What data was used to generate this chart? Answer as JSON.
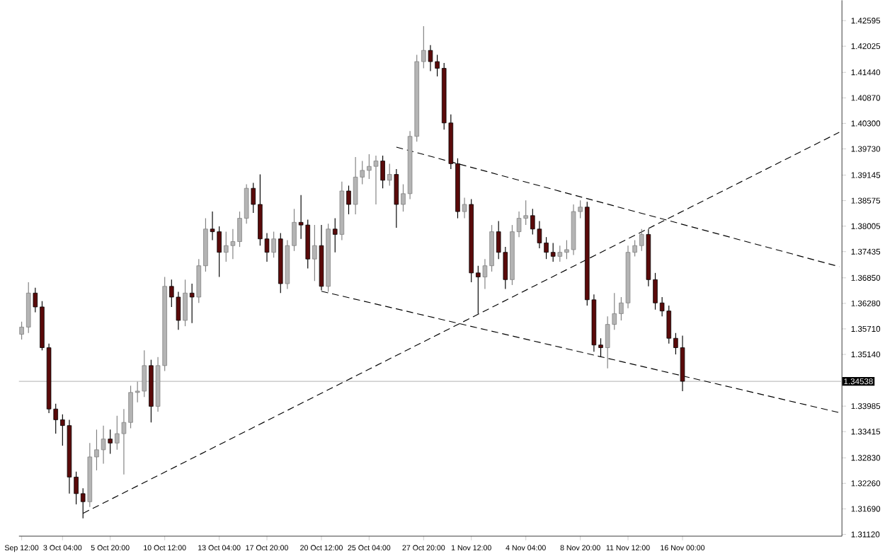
{
  "chart_data": {
    "type": "candlestick",
    "categories": [
      "Sep 12:00",
      null,
      null,
      null,
      null,
      null,
      "3 Oct 04:00",
      null,
      null,
      null,
      null,
      null,
      null,
      "5 Oct 20:00",
      null,
      null,
      null,
      null,
      null,
      null,
      null,
      "10 Oct 12:00",
      null,
      null,
      null,
      null,
      null,
      null,
      null,
      "13 Oct 04:00",
      null,
      null,
      null,
      null,
      null,
      null,
      "17 Oct 20:00",
      null,
      null,
      null,
      null,
      null,
      null,
      null,
      "20 Oct 12:00",
      null,
      null,
      null,
      null,
      null,
      null,
      "25 Oct 04:00",
      null,
      null,
      null,
      null,
      null,
      null,
      null,
      "27 Oct 20:00",
      null,
      null,
      null,
      null,
      null,
      null,
      "1 Nov 12:00",
      null,
      null,
      null,
      null,
      null,
      null,
      null,
      "4 Nov 04:00",
      null,
      null,
      null,
      null,
      null,
      null,
      null,
      "8 Nov 20:00",
      null,
      null,
      null,
      null,
      null,
      null,
      "11 Nov 12:00",
      null,
      null,
      null,
      null,
      null,
      null,
      null,
      "16 Nov 00:00",
      null,
      null,
      null,
      null,
      null,
      null,
      null,
      null,
      null,
      null,
      null,
      null,
      null,
      null,
      null,
      null,
      null,
      null,
      null,
      null,
      null,
      null,
      null
    ],
    "ohlc": [
      [
        1.3559,
        1.3587,
        1.3547,
        1.3575
      ],
      [
        1.3575,
        1.3675,
        1.3562,
        1.3651
      ],
      [
        1.3651,
        1.3663,
        1.3608,
        1.362
      ],
      [
        1.362,
        1.3633,
        1.3523,
        1.3529
      ],
      [
        1.3529,
        1.3538,
        1.3383,
        1.3392
      ],
      [
        1.3392,
        1.3404,
        1.3337,
        1.3368
      ],
      [
        1.3368,
        1.338,
        1.331,
        1.3355
      ],
      [
        1.3355,
        1.3368,
        1.3203,
        1.324
      ],
      [
        1.324,
        1.3252,
        1.3179,
        1.3203
      ],
      [
        1.3203,
        1.3215,
        1.3148,
        1.3185
      ],
      [
        1.3185,
        1.3316,
        1.3173,
        1.3285
      ],
      [
        1.3285,
        1.3346,
        1.3255,
        1.3301
      ],
      [
        1.3301,
        1.3355,
        1.327,
        1.3325
      ],
      [
        1.3325,
        1.3346,
        1.3292,
        1.3316
      ],
      [
        1.3316,
        1.3377,
        1.3301,
        1.3337
      ],
      [
        1.3337,
        1.3392,
        1.3246,
        1.3362
      ],
      [
        1.3362,
        1.3444,
        1.3349,
        1.3429
      ],
      [
        1.3429,
        1.3453,
        1.3407,
        1.3432
      ],
      [
        1.3432,
        1.3523,
        1.3419,
        1.3489
      ],
      [
        1.3489,
        1.3502,
        1.3362,
        1.3398
      ],
      [
        1.3398,
        1.3508,
        1.3386,
        1.3489
      ],
      [
        1.3489,
        1.3687,
        1.3477,
        1.3666
      ],
      [
        1.3666,
        1.3681,
        1.362,
        1.3642
      ],
      [
        1.3642,
        1.3654,
        1.3569,
        1.359
      ],
      [
        1.359,
        1.3681,
        1.3577,
        1.3651
      ],
      [
        1.3651,
        1.3672,
        1.3584,
        1.3642
      ],
      [
        1.3642,
        1.3727,
        1.3629,
        1.3712
      ],
      [
        1.3712,
        1.3818,
        1.3699,
        1.3794
      ],
      [
        1.3794,
        1.3833,
        1.3769,
        1.3788
      ],
      [
        1.3788,
        1.38,
        1.3687,
        1.3742
      ],
      [
        1.3742,
        1.3788,
        1.3721,
        1.3757
      ],
      [
        1.3757,
        1.3794,
        1.3727,
        1.3766
      ],
      [
        1.3766,
        1.3833,
        1.3754,
        1.3818
      ],
      [
        1.3818,
        1.3894,
        1.3806,
        1.3885
      ],
      [
        1.3885,
        1.3897,
        1.383,
        1.3849
      ],
      [
        1.3849,
        1.3916,
        1.3757,
        1.3772
      ],
      [
        1.3772,
        1.3785,
        1.3721,
        1.3742
      ],
      [
        1.3742,
        1.3788,
        1.373,
        1.3772
      ],
      [
        1.3772,
        1.3785,
        1.3651,
        1.3672
      ],
      [
        1.3672,
        1.3769,
        1.366,
        1.3757
      ],
      [
        1.3757,
        1.3839,
        1.3745,
        1.3809
      ],
      [
        1.3809,
        1.387,
        1.3772,
        1.3803
      ],
      [
        1.3803,
        1.3815,
        1.3706,
        1.3727
      ],
      [
        1.3727,
        1.3803,
        1.3678,
        1.3757
      ],
      [
        1.3757,
        1.3803,
        1.3657,
        1.3666
      ],
      [
        1.3666,
        1.3806,
        1.3654,
        1.3794
      ],
      [
        1.3794,
        1.3818,
        1.3742,
        1.3782
      ],
      [
        1.3782,
        1.39,
        1.3769,
        1.3879
      ],
      [
        1.3879,
        1.3891,
        1.3827,
        1.3849
      ],
      [
        1.3849,
        1.3955,
        1.3827,
        1.391
      ],
      [
        1.391,
        1.3946,
        1.3894,
        1.3925
      ],
      [
        1.3925,
        1.3961,
        1.3906,
        1.3934
      ],
      [
        1.3934,
        1.3958,
        1.3849,
        1.3946
      ],
      [
        1.3946,
        1.3958,
        1.3885,
        1.3903
      ],
      [
        1.3903,
        1.394,
        1.3891,
        1.3916
      ],
      [
        1.3916,
        1.3928,
        1.3797,
        1.3849
      ],
      [
        1.3849,
        1.3894,
        1.3833,
        1.3873
      ],
      [
        1.3873,
        1.4013,
        1.3861,
        1.4001
      ],
      [
        1.4001,
        1.4183,
        1.3989,
        1.4168
      ],
      [
        1.4168,
        1.4247,
        1.4153,
        1.4193
      ],
      [
        1.4193,
        1.4205,
        1.4147,
        1.4168
      ],
      [
        1.4168,
        1.4183,
        1.4135,
        1.4153
      ],
      [
        1.4153,
        1.4165,
        1.4016,
        1.4031
      ],
      [
        1.4031,
        1.405,
        1.3928,
        1.394
      ],
      [
        1.394,
        1.3952,
        1.3818,
        1.3833
      ],
      [
        1.3833,
        1.3864,
        1.3818,
        1.3849
      ],
      [
        1.3849,
        1.3861,
        1.3675,
        1.3696
      ],
      [
        1.3696,
        1.3712,
        1.3605,
        1.3687
      ],
      [
        1.3687,
        1.3727,
        1.366,
        1.3712
      ],
      [
        1.3712,
        1.3803,
        1.3699,
        1.3788
      ],
      [
        1.3788,
        1.3812,
        1.3727,
        1.3742
      ],
      [
        1.3742,
        1.3754,
        1.366,
        1.3681
      ],
      [
        1.3681,
        1.3803,
        1.3669,
        1.3788
      ],
      [
        1.3788,
        1.3833,
        1.3776,
        1.3818
      ],
      [
        1.3818,
        1.3858,
        1.3803,
        1.3824
      ],
      [
        1.3824,
        1.3839,
        1.3782,
        1.3794
      ],
      [
        1.3794,
        1.3812,
        1.3751,
        1.3763
      ],
      [
        1.3763,
        1.3776,
        1.3727,
        1.3742
      ],
      [
        1.3742,
        1.3763,
        1.3721,
        1.3733
      ],
      [
        1.3733,
        1.3757,
        1.3721,
        1.3742
      ],
      [
        1.3742,
        1.3769,
        1.3727,
        1.3748
      ],
      [
        1.3748,
        1.3849,
        1.3736,
        1.3833
      ],
      [
        1.3833,
        1.3858,
        1.3818,
        1.3843
      ],
      [
        1.3843,
        1.3855,
        1.3623,
        1.3636
      ],
      [
        1.3636,
        1.3648,
        1.352,
        1.3535
      ],
      [
        1.3535,
        1.355,
        1.3508,
        1.3529
      ],
      [
        1.3529,
        1.3599,
        1.3483,
        1.3581
      ],
      [
        1.3581,
        1.3651,
        1.3569,
        1.3605
      ],
      [
        1.3605,
        1.3642,
        1.359,
        1.3629
      ],
      [
        1.3629,
        1.3757,
        1.3617,
        1.3742
      ],
      [
        1.3742,
        1.3769,
        1.3733,
        1.3757
      ],
      [
        1.3757,
        1.3794,
        1.3745,
        1.3782
      ],
      [
        1.3782,
        1.3794,
        1.3666,
        1.3681
      ],
      [
        1.3681,
        1.3696,
        1.3614,
        1.3629
      ],
      [
        1.3629,
        1.3642,
        1.3599,
        1.3611
      ],
      [
        1.3611,
        1.3623,
        1.3538,
        1.355
      ],
      [
        1.355,
        1.3562,
        1.3514,
        1.3529
      ],
      [
        1.3529,
        1.3556,
        1.3432,
        1.3454
      ],
      null,
      null,
      null,
      null,
      null,
      null,
      null,
      null,
      null,
      null,
      null,
      null,
      null,
      null,
      null,
      null,
      null,
      null,
      null,
      null,
      null,
      null,
      null
    ],
    "series": [
      {
        "type": "line",
        "line_style": "dashed",
        "color": "#000000",
        "values": [
          null,
          null,
          null,
          null,
          null,
          null,
          null,
          null,
          null,
          1.3159,
          null,
          null,
          null,
          null,
          null,
          null,
          null,
          null,
          null,
          null,
          null,
          null,
          null,
          null,
          null,
          null,
          null,
          null,
          null,
          null,
          null,
          null,
          null,
          null,
          null,
          null,
          null,
          null,
          null,
          null,
          null,
          null,
          null,
          null,
          null,
          null,
          null,
          null,
          null,
          null,
          null,
          null,
          null,
          null,
          null,
          null,
          null,
          null,
          null,
          null,
          null,
          null,
          null,
          null,
          null,
          null,
          null,
          null,
          null,
          null,
          null,
          null,
          null,
          null,
          null,
          null,
          null,
          null,
          null,
          null,
          null,
          null,
          null,
          null,
          null,
          null,
          null,
          null,
          null,
          null,
          null,
          null,
          null,
          null,
          null,
          null,
          null,
          null,
          null,
          null,
          null,
          null,
          null,
          null,
          null,
          null,
          null,
          null,
          null,
          null,
          null,
          null,
          null,
          null,
          null,
          null,
          null,
          null,
          null,
          null,
          1.401
        ]
      },
      {
        "type": "line",
        "line_style": "dashed",
        "color": "#000000",
        "values": [
          null,
          null,
          null,
          null,
          null,
          null,
          null,
          null,
          null,
          null,
          null,
          null,
          null,
          null,
          null,
          null,
          null,
          null,
          null,
          null,
          null,
          null,
          null,
          null,
          null,
          null,
          null,
          null,
          null,
          null,
          null,
          null,
          null,
          null,
          null,
          null,
          null,
          null,
          null,
          null,
          null,
          null,
          null,
          null,
          null,
          null,
          null,
          null,
          null,
          null,
          null,
          null,
          null,
          null,
          null,
          1.3977,
          null,
          null,
          null,
          null,
          null,
          null,
          null,
          null,
          null,
          null,
          null,
          null,
          null,
          null,
          null,
          null,
          null,
          null,
          null,
          null,
          null,
          null,
          null,
          null,
          null,
          null,
          null,
          null,
          null,
          null,
          null,
          null,
          null,
          null,
          null,
          null,
          null,
          null,
          null,
          null,
          null,
          null,
          null,
          null,
          null,
          null,
          null,
          null,
          null,
          null,
          null,
          null,
          null,
          null,
          null,
          null,
          null,
          null,
          null,
          null,
          null,
          null,
          null,
          null,
          1.371
        ]
      },
      {
        "type": "line",
        "line_style": "dashed",
        "color": "#000000",
        "values": [
          null,
          null,
          null,
          null,
          null,
          null,
          null,
          null,
          null,
          null,
          null,
          null,
          null,
          null,
          null,
          null,
          null,
          null,
          null,
          null,
          null,
          null,
          null,
          null,
          null,
          null,
          null,
          null,
          null,
          null,
          null,
          null,
          null,
          null,
          null,
          null,
          null,
          null,
          null,
          null,
          null,
          null,
          null,
          null,
          1.3655,
          null,
          null,
          null,
          null,
          null,
          null,
          null,
          null,
          null,
          null,
          null,
          null,
          null,
          null,
          null,
          null,
          null,
          null,
          null,
          null,
          null,
          null,
          null,
          null,
          null,
          null,
          null,
          null,
          null,
          null,
          null,
          null,
          null,
          null,
          null,
          null,
          null,
          null,
          null,
          null,
          null,
          null,
          null,
          null,
          null,
          null,
          null,
          null,
          null,
          null,
          null,
          null,
          null,
          null,
          null,
          null,
          null,
          null,
          null,
          null,
          null,
          null,
          null,
          null,
          null,
          null,
          null,
          null,
          null,
          null,
          null,
          null,
          null,
          null,
          null,
          1.3384
        ]
      }
    ],
    "ylim": [
      1.3108,
      1.4305
    ],
    "yticks": [
      {
        "value": 1.42595,
        "label": "1.42595"
      },
      {
        "value": 1.42025,
        "label": "1.42025"
      },
      {
        "value": 1.4144,
        "label": "1.41440"
      },
      {
        "value": 1.4087,
        "label": "1.40870"
      },
      {
        "value": 1.403,
        "label": "1.40300"
      },
      {
        "value": 1.3973,
        "label": "1.39730"
      },
      {
        "value": 1.39145,
        "label": "1.39145"
      },
      {
        "value": 1.38575,
        "label": "1.38575"
      },
      {
        "value": 1.38005,
        "label": "1.38005"
      },
      {
        "value": 1.37435,
        "label": "1.37435"
      },
      {
        "value": 1.3685,
        "label": "1.36850"
      },
      {
        "value": 1.3628,
        "label": "1.36280"
      },
      {
        "value": 1.3571,
        "label": "1.35710"
      },
      {
        "value": 1.3514,
        "label": "1.35140"
      },
      {
        "value": 1.33985,
        "label": "1.33985"
      },
      {
        "value": 1.33415,
        "label": "1.33415"
      },
      {
        "value": 1.3283,
        "label": "1.32830"
      },
      {
        "value": 1.3226,
        "label": "1.32260"
      },
      {
        "value": 1.3169,
        "label": "1.31690"
      },
      {
        "value": 1.3112,
        "label": "1.31120"
      }
    ],
    "ref_lines": [
      {
        "axis": "y",
        "value": 1.34538,
        "label": "1.34538",
        "color": "#c0c0c0"
      }
    ]
  }
}
